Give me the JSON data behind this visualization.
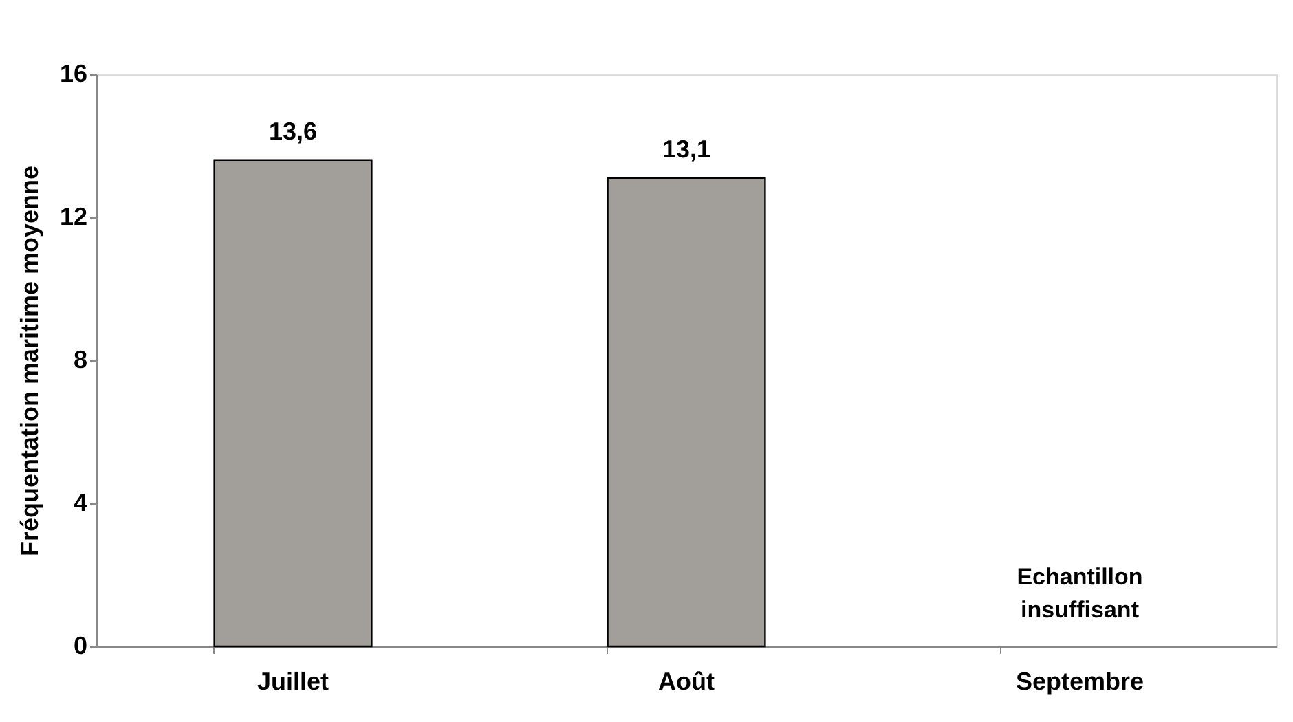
{
  "chart_data": {
    "type": "bar",
    "ylabel": "Fréquentation maritime moyenne",
    "categories": [
      "Juillet",
      "Août",
      "Septembre"
    ],
    "values": [
      13.6,
      13.1,
      null
    ],
    "value_labels": [
      "13,6",
      "13,1",
      null
    ],
    "color": "#a29e9a",
    "ylim": [
      0,
      16
    ],
    "yticks": [
      0,
      4,
      8,
      12,
      16
    ],
    "grid": false,
    "annotations": [
      "Echantillon\ninsuffisant"
    ]
  }
}
